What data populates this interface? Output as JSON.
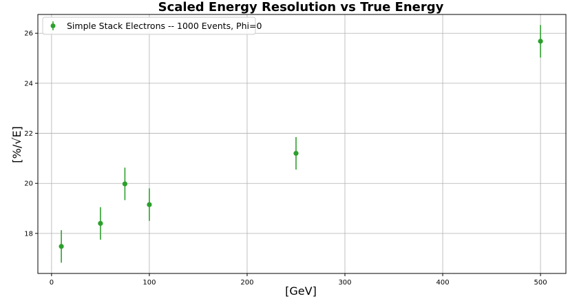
{
  "chart_data": {
    "type": "scatter",
    "title": "Scaled Energy Resolution vs True Energy",
    "xlabel": "[GeV]",
    "ylabel": "[%/√E]",
    "xlim": [
      -14,
      526
    ],
    "ylim": [
      16.4,
      26.75
    ],
    "xticks": [
      0,
      100,
      200,
      300,
      400,
      500
    ],
    "yticks": [
      18,
      20,
      22,
      24,
      26
    ],
    "grid": true,
    "legend_position": "top-left",
    "series": [
      {
        "name": "Simple Stack Electrons -- 1000 Events, Phi=0",
        "color": "#2ca02c",
        "marker": "circle",
        "error_bars": true,
        "x": [
          10,
          50,
          75,
          100,
          250,
          500
        ],
        "y": [
          17.48,
          18.4,
          19.98,
          19.15,
          21.2,
          25.68
        ],
        "yerr": [
          0.65,
          0.65,
          0.65,
          0.65,
          0.65,
          0.65
        ]
      }
    ]
  }
}
